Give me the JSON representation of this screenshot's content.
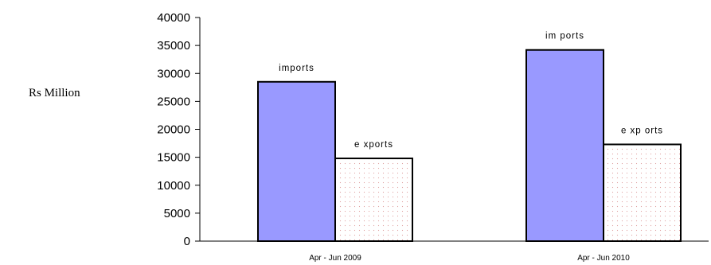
{
  "chart_data": {
    "type": "bar",
    "title": "",
    "xlabel": "",
    "ylabel": "Rs Million",
    "ylim": [
      0,
      40000
    ],
    "yticks": [
      0,
      5000,
      10000,
      15000,
      20000,
      25000,
      30000,
      35000,
      40000
    ],
    "categories": [
      "Apr - Jun 2009",
      "Apr - Jun 2010"
    ],
    "series": [
      {
        "name": "imports",
        "values": [
          28500,
          34200
        ],
        "color": "#9999ff",
        "pattern": "solid",
        "bar_labels": [
          "imports",
          "im ports"
        ]
      },
      {
        "name": "exports",
        "values": [
          14800,
          17300
        ],
        "color": "#ffffff",
        "pattern_dot_color": "#e0a0a0",
        "pattern": "dotted",
        "bar_labels": [
          "e xports",
          "e xp orts"
        ]
      }
    ],
    "grid": false,
    "legend": "none"
  }
}
